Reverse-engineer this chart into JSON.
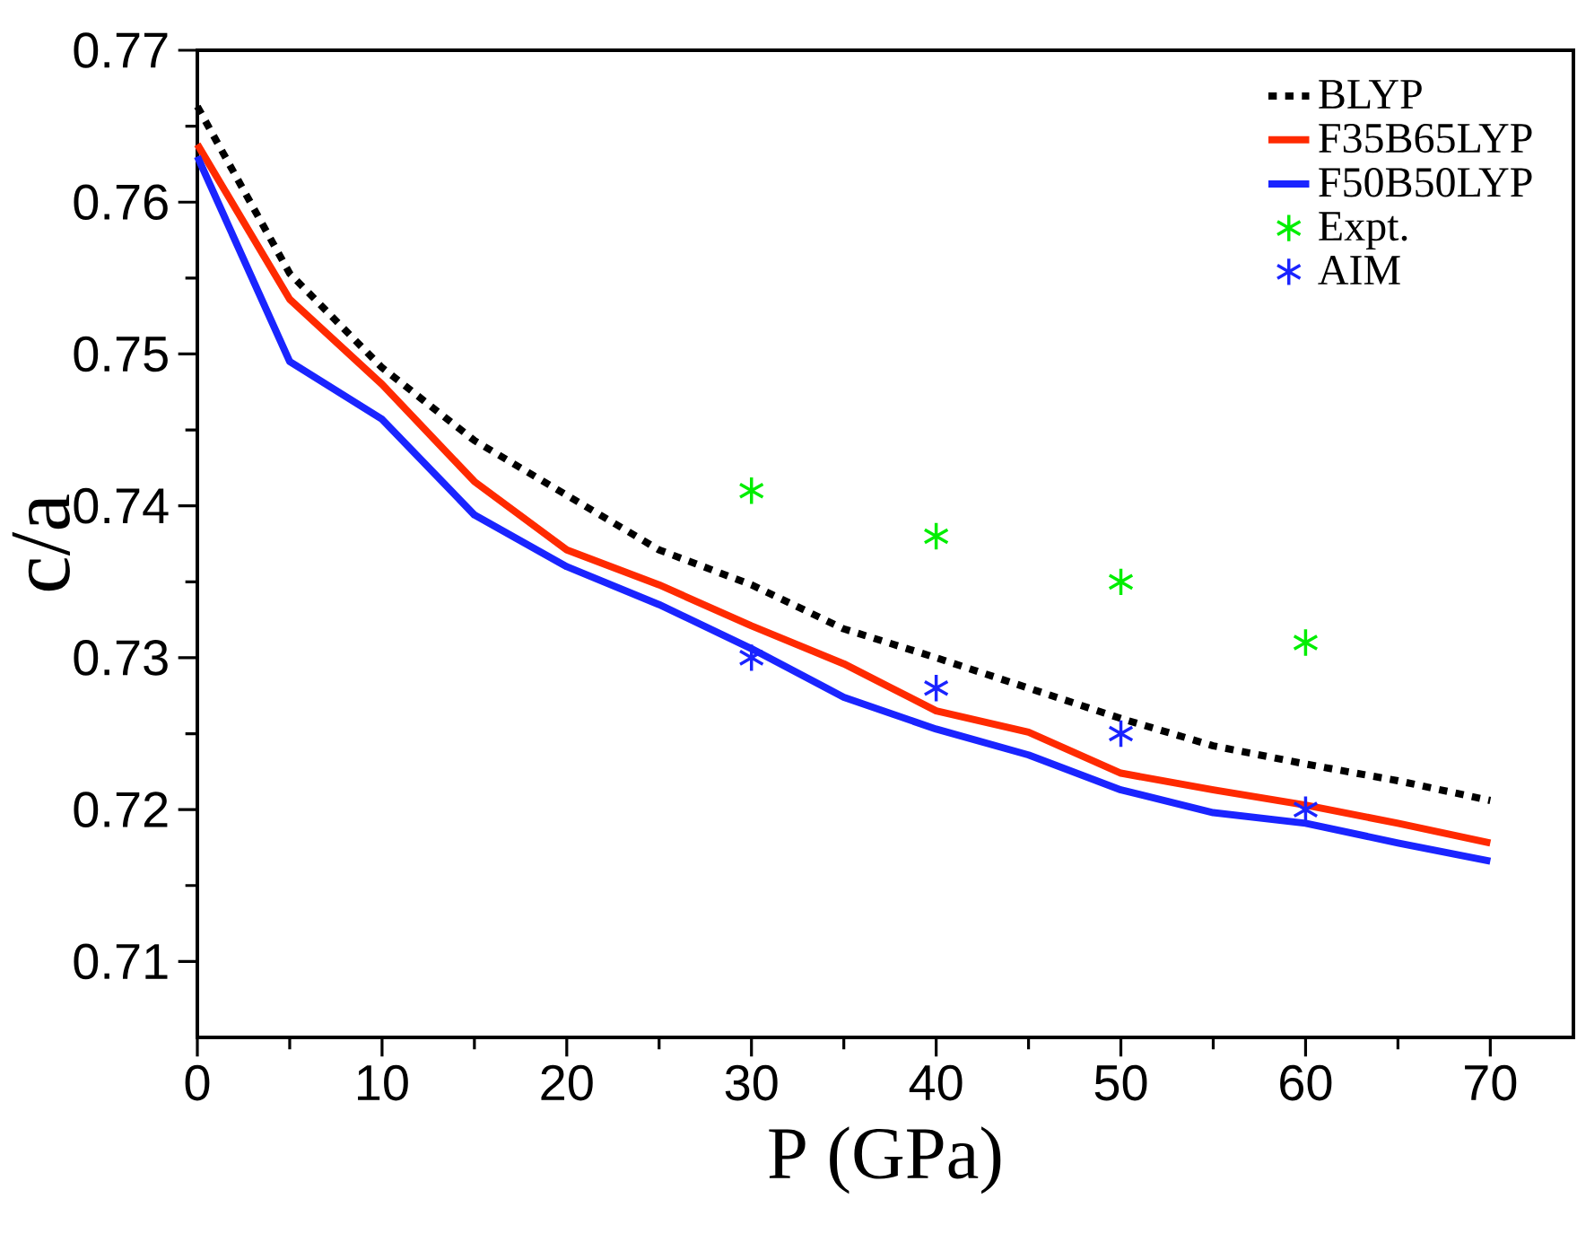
{
  "chart_data": {
    "type": "line",
    "xlabel": "P (GPa)",
    "ylabel": "c/a",
    "xlim": [
      0,
      74.5
    ],
    "ylim": [
      0.705,
      0.77
    ],
    "xticks": [
      0,
      10,
      20,
      30,
      40,
      50,
      60,
      70
    ],
    "yticks": [
      0.71,
      0.72,
      0.73,
      0.74,
      0.75,
      0.76,
      0.77
    ],
    "legend": "top right",
    "grid": false,
    "series": [
      {
        "name": "BLYP",
        "color": "#000000",
        "line_style": "dotted",
        "x": [
          0,
          5,
          10,
          15,
          20,
          25,
          30,
          35,
          40,
          45,
          50,
          55,
          60,
          65,
          70
        ],
        "values": [
          0.7663,
          0.7553,
          0.7491,
          0.7443,
          0.7407,
          0.7371,
          0.7348,
          0.7319,
          0.73,
          0.728,
          0.726,
          0.7242,
          0.723,
          0.7219,
          0.7206
        ]
      },
      {
        "name": "F35B65LYP",
        "color": "#ff2a00",
        "line_style": "solid",
        "x": [
          0,
          5,
          10,
          15,
          20,
          25,
          30,
          35,
          40,
          45,
          50,
          55,
          60,
          65,
          70
        ],
        "values": [
          0.7638,
          0.7536,
          0.748,
          0.7416,
          0.7371,
          0.7348,
          0.7321,
          0.7296,
          0.7265,
          0.7251,
          0.7224,
          0.7213,
          0.7203,
          0.7191,
          0.7178
        ]
      },
      {
        "name": "F50B50LYP",
        "color": "#1a24ff",
        "line_style": "solid",
        "x": [
          0,
          5,
          10,
          15,
          20,
          25,
          30,
          35,
          40,
          45,
          50,
          55,
          60,
          65,
          70
        ],
        "values": [
          0.763,
          0.7495,
          0.7457,
          0.7394,
          0.736,
          0.7335,
          0.7306,
          0.7274,
          0.7253,
          0.7236,
          0.7213,
          0.7198,
          0.7191,
          0.7178,
          0.7166
        ]
      },
      {
        "name": "Expt.",
        "type": "scatter",
        "marker": "cross",
        "color": "#00ee00",
        "x": [
          30,
          40,
          50,
          60
        ],
        "values": [
          0.741,
          0.738,
          0.735,
          0.731
        ]
      },
      {
        "name": "AIM",
        "type": "scatter",
        "marker": "cross",
        "color": "#1a24ff",
        "x": [
          30,
          40,
          50,
          60
        ],
        "values": [
          0.73,
          0.728,
          0.725,
          0.72
        ]
      }
    ]
  }
}
